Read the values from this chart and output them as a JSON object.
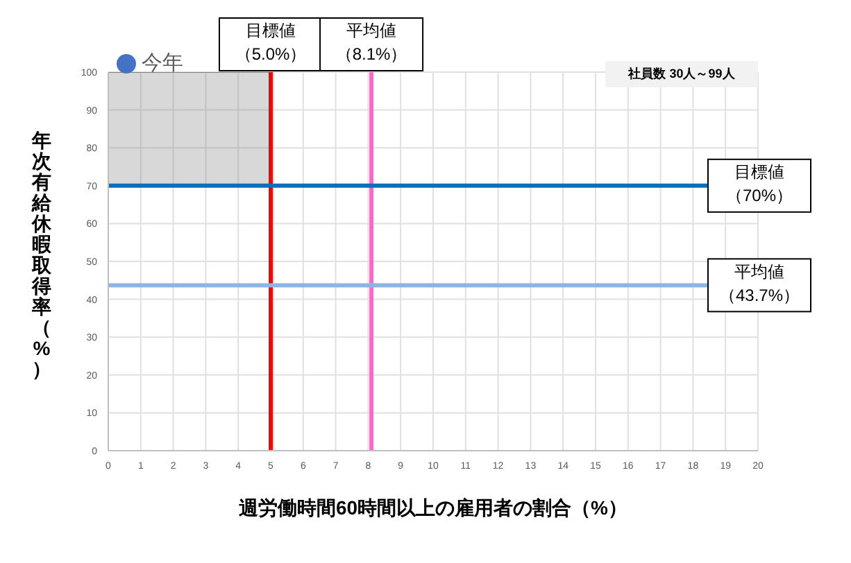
{
  "chart_data": {
    "type": "scatter",
    "xlabel": "週労働時間60時間以上の雇用者の割合（%）",
    "ylabel": "年次有給休暇取得率（%）",
    "annotations": [
      "社員数 30人～99人"
    ],
    "xlim": [
      0,
      20
    ],
    "ylim": [
      0,
      100
    ],
    "xticks": [
      0,
      1,
      2,
      3,
      4,
      5,
      6,
      7,
      8,
      9,
      10,
      11,
      12,
      13,
      14,
      15,
      16,
      17,
      18,
      19,
      20
    ],
    "yticks": [
      0,
      10,
      20,
      30,
      40,
      50,
      60,
      70,
      80,
      90,
      100
    ],
    "grid": true,
    "legend": "top left",
    "marker": "circle",
    "series": [
      {
        "name": "今年",
        "color": "#4472c4"
      },
      {
        "type": "line",
        "color": "#7f7f7f",
        "marker": "none",
        "x": [
          0,
          5
        ],
        "values": [
          100,
          100
        ],
        "lower": [
          70,
          70
        ],
        "upper": [
          100,
          100
        ]
      }
    ],
    "ref_lines": [
      {
        "axis": "x",
        "value": 5,
        "label": "目標値（5.0%）",
        "color": "#ff0000"
      },
      {
        "axis": "x",
        "value": 8.1,
        "label": "平均値（8.1%）",
        "color": "#ff66cc"
      },
      {
        "axis": "y",
        "value": 70,
        "label": "目標値（70%）",
        "color": "#0070c0"
      },
      {
        "axis": "y",
        "value": 43.7,
        "label": "平均値（43.7%）",
        "color": "#8db4e2"
      }
    ]
  }
}
